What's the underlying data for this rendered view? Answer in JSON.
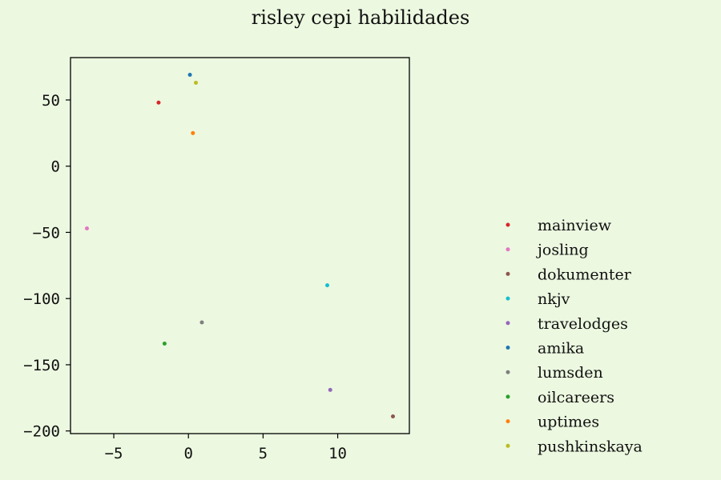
{
  "chart_data": {
    "type": "scatter",
    "title": "risley cepi habilidades",
    "xlim": [
      -7.9,
      14.8
    ],
    "ylim": [
      -202,
      82
    ],
    "xticks": [
      -5,
      0,
      5,
      10
    ],
    "yticks": [
      50,
      0,
      -50,
      -100,
      -150,
      -200
    ],
    "grid": false,
    "legend_position": "right",
    "series": [
      {
        "name": "mainview",
        "color": "#d62728",
        "points": [
          [
            -2.0,
            48
          ]
        ]
      },
      {
        "name": "josling",
        "color": "#e377c2",
        "points": [
          [
            -6.8,
            -47
          ]
        ]
      },
      {
        "name": "dokumenter",
        "color": "#8c564b",
        "points": [
          [
            13.7,
            -189
          ]
        ]
      },
      {
        "name": "nkjv",
        "color": "#17becf",
        "points": [
          [
            9.3,
            -90
          ]
        ]
      },
      {
        "name": "travelodges",
        "color": "#9467bd",
        "points": [
          [
            9.5,
            -169
          ]
        ]
      },
      {
        "name": "amika",
        "color": "#1f77b4",
        "points": [
          [
            0.1,
            69
          ]
        ]
      },
      {
        "name": "lumsden",
        "color": "#7f7f7f",
        "points": [
          [
            0.9,
            -118
          ]
        ]
      },
      {
        "name": "oilcareers",
        "color": "#2ca02c",
        "points": [
          [
            -1.6,
            -134
          ]
        ]
      },
      {
        "name": "uptimes",
        "color": "#ff7f0e",
        "points": [
          [
            0.3,
            25
          ]
        ]
      },
      {
        "name": "pushkinskaya",
        "color": "#bcbd22",
        "points": [
          [
            0.5,
            63
          ]
        ]
      }
    ]
  }
}
